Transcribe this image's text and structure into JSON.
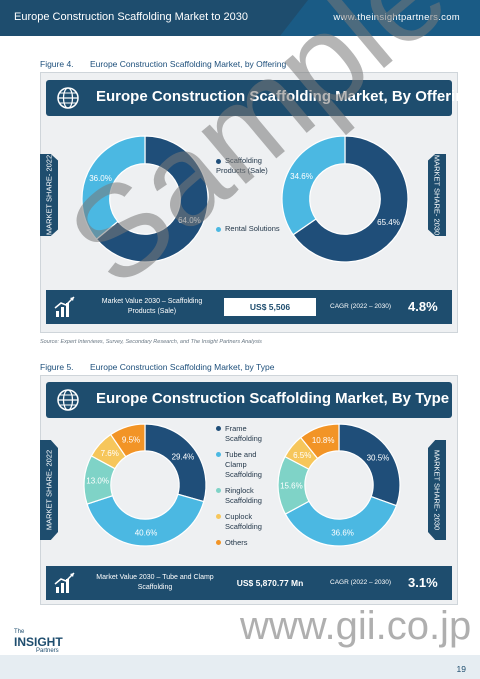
{
  "header": {
    "title": "Europe Construction Scaffolding Market to 2030",
    "site": "www.theinsightpartners.com"
  },
  "figure4": {
    "label": "Figure 4.",
    "caption": "Europe Construction Scaffolding Market, by Offering",
    "panel_title": "Europe Construction Scaffolding Market, By Offering",
    "left_tab": "MARKET SHARE- 2022",
    "right_tab": "MARKET SHARE- 2030",
    "legend": [
      "Scaffolding Products (Sale)",
      "Rental Solutions"
    ],
    "footer_label": "Market Value 2030 – Scaffolding Products (Sale)",
    "footer_value": "US$ 5,506",
    "cagr_label": "CAGR (2022 – 2030)",
    "cagr_value": "4.8%"
  },
  "figure5": {
    "label": "Figure 5.",
    "caption": "Europe Construction Scaffolding Market, by Type",
    "panel_title": "Europe Construction Scaffolding Market, By Type",
    "left_tab": "MARKET SHARE- 2022",
    "right_tab": "MARKET SHARE- 2030",
    "legend": [
      "Frame Scaffolding",
      "Tube and Clamp Scaffolding",
      "Ringlock Scaffolding",
      "Cuplock Scaffolding",
      "Others"
    ],
    "footer_label": "Market Value 2030 – Tube and Clamp Scaffolding",
    "footer_value": "US$ 5,870.77 Mn",
    "cagr_label": "CAGR (2022 – 2030)",
    "cagr_value": "3.1%"
  },
  "source": "Source: Expert Interviews, Survey, Secondary Research, and The Insight Partners Analysis",
  "watermark": "Sample",
  "gii_watermark": "www.gii.co.jp",
  "page_number": "19",
  "logo": {
    "line1": "The",
    "line2": "INSIGHT",
    "line3": "Partners"
  },
  "colors": {
    "navy": "#1e4d6e",
    "dark_blue": "#1f4e79",
    "sky": "#4bb8e2",
    "teal": "#7fd3c7",
    "yellow": "#f6c65b",
    "orange": "#f29426"
  },
  "chart_data": [
    {
      "type": "pie",
      "variant": "donut",
      "title": "MARKET SHARE- 2022",
      "categories": [
        "Scaffolding Products (Sale)",
        "Rental Solutions"
      ],
      "values": [
        64.0,
        36.0
      ],
      "labels": [
        "64.0%",
        "36.0%"
      ],
      "colors": [
        "#1f4e79",
        "#4bb8e2"
      ]
    },
    {
      "type": "pie",
      "variant": "donut",
      "title": "MARKET SHARE- 2030",
      "categories": [
        "Scaffolding Products (Sale)",
        "Rental Solutions"
      ],
      "values": [
        65.4,
        34.6
      ],
      "labels": [
        "65.4%",
        "34.6%"
      ],
      "colors": [
        "#1f4e79",
        "#4bb8e2"
      ]
    },
    {
      "type": "pie",
      "variant": "donut",
      "title": "MARKET SHARE- 2022",
      "categories": [
        "Frame Scaffolding",
        "Tube and Clamp Scaffolding",
        "Ringlock Scaffolding",
        "Cuplock Scaffolding",
        "Others"
      ],
      "values": [
        29.4,
        40.6,
        13.0,
        7.6,
        9.5
      ],
      "labels": [
        "29.4%",
        "40.6%",
        "13.0%",
        "7.6%",
        "9.5%"
      ],
      "colors": [
        "#1f4e79",
        "#4bb8e2",
        "#7fd3c7",
        "#f6c65b",
        "#f29426"
      ]
    },
    {
      "type": "pie",
      "variant": "donut",
      "title": "MARKET SHARE- 2030",
      "categories": [
        "Frame Scaffolding",
        "Tube and Clamp Scaffolding",
        "Ringlock Scaffolding",
        "Cuplock Scaffolding",
        "Others"
      ],
      "values": [
        30.5,
        36.6,
        15.6,
        6.5,
        10.8
      ],
      "labels": [
        "30.5%",
        "36.6%",
        "15.6%",
        "6.5%",
        "10.8%"
      ],
      "colors": [
        "#1f4e79",
        "#4bb8e2",
        "#7fd3c7",
        "#f6c65b",
        "#f29426"
      ]
    }
  ]
}
